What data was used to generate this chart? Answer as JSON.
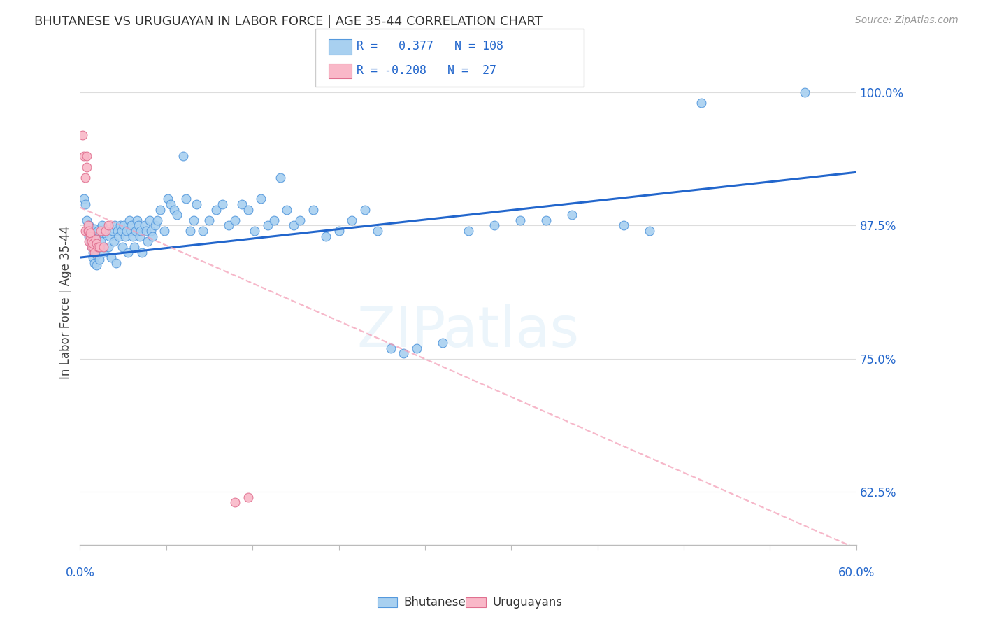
{
  "title": "BHUTANESE VS URUGUAYAN IN LABOR FORCE | AGE 35-44 CORRELATION CHART",
  "source": "Source: ZipAtlas.com",
  "ylabel": "In Labor Force | Age 35-44",
  "ylabel_right_ticks": [
    0.625,
    0.75,
    0.875,
    1.0
  ],
  "ylabel_right_labels": [
    "62.5%",
    "75.0%",
    "87.5%",
    "100.0%"
  ],
  "xmin": 0.0,
  "xmax": 0.6,
  "ymin": 0.575,
  "ymax": 1.03,
  "blue_color": "#A8D0F0",
  "pink_color": "#F9B8C8",
  "blue_edge_color": "#5599DD",
  "pink_edge_color": "#E07090",
  "blue_line_color": "#2266CC",
  "pink_line_color": "#F4A0B8",
  "label_color": "#2266CC",
  "watermark": "ZIPatlas",
  "blue_scatter_x": [
    0.003,
    0.004,
    0.005,
    0.006,
    0.007,
    0.007,
    0.008,
    0.008,
    0.009,
    0.009,
    0.01,
    0.01,
    0.01,
    0.011,
    0.011,
    0.012,
    0.012,
    0.013,
    0.013,
    0.014,
    0.015,
    0.015,
    0.016,
    0.017,
    0.018,
    0.019,
    0.02,
    0.022,
    0.023,
    0.024,
    0.025,
    0.026,
    0.027,
    0.028,
    0.029,
    0.03,
    0.031,
    0.032,
    0.033,
    0.034,
    0.035,
    0.036,
    0.037,
    0.038,
    0.039,
    0.04,
    0.041,
    0.042,
    0.043,
    0.044,
    0.045,
    0.046,
    0.047,
    0.048,
    0.05,
    0.051,
    0.052,
    0.054,
    0.055,
    0.056,
    0.058,
    0.06,
    0.062,
    0.065,
    0.068,
    0.07,
    0.073,
    0.075,
    0.08,
    0.082,
    0.085,
    0.088,
    0.09,
    0.095,
    0.1,
    0.105,
    0.11,
    0.115,
    0.12,
    0.125,
    0.13,
    0.135,
    0.14,
    0.145,
    0.15,
    0.155,
    0.16,
    0.165,
    0.17,
    0.18,
    0.19,
    0.2,
    0.21,
    0.22,
    0.23,
    0.24,
    0.25,
    0.26,
    0.28,
    0.3,
    0.32,
    0.34,
    0.36,
    0.38,
    0.42,
    0.44,
    0.48,
    0.56
  ],
  "blue_scatter_y": [
    0.9,
    0.895,
    0.88,
    0.87,
    0.865,
    0.875,
    0.86,
    0.868,
    0.855,
    0.863,
    0.85,
    0.858,
    0.845,
    0.872,
    0.84,
    0.865,
    0.855,
    0.848,
    0.838,
    0.87,
    0.843,
    0.855,
    0.86,
    0.875,
    0.85,
    0.868,
    0.87,
    0.855,
    0.865,
    0.845,
    0.87,
    0.86,
    0.875,
    0.84,
    0.87,
    0.865,
    0.875,
    0.87,
    0.855,
    0.875,
    0.865,
    0.87,
    0.85,
    0.88,
    0.87,
    0.875,
    0.865,
    0.855,
    0.87,
    0.88,
    0.875,
    0.865,
    0.87,
    0.85,
    0.875,
    0.87,
    0.86,
    0.88,
    0.87,
    0.865,
    0.875,
    0.88,
    0.89,
    0.87,
    0.9,
    0.895,
    0.89,
    0.885,
    0.94,
    0.9,
    0.87,
    0.88,
    0.895,
    0.87,
    0.88,
    0.89,
    0.895,
    0.875,
    0.88,
    0.895,
    0.89,
    0.87,
    0.9,
    0.875,
    0.88,
    0.92,
    0.89,
    0.875,
    0.88,
    0.89,
    0.865,
    0.87,
    0.88,
    0.89,
    0.87,
    0.76,
    0.755,
    0.76,
    0.765,
    0.87,
    0.875,
    0.88,
    0.88,
    0.885,
    0.875,
    0.87,
    0.99,
    1.0
  ],
  "pink_scatter_x": [
    0.002,
    0.003,
    0.004,
    0.004,
    0.005,
    0.005,
    0.006,
    0.006,
    0.007,
    0.007,
    0.008,
    0.008,
    0.009,
    0.009,
    0.01,
    0.01,
    0.011,
    0.012,
    0.013,
    0.014,
    0.015,
    0.016,
    0.018,
    0.02,
    0.022,
    0.12,
    0.13
  ],
  "pink_scatter_y": [
    0.96,
    0.94,
    0.87,
    0.92,
    0.93,
    0.94,
    0.87,
    0.875,
    0.86,
    0.87,
    0.865,
    0.868,
    0.855,
    0.86,
    0.855,
    0.858,
    0.85,
    0.862,
    0.858,
    0.855,
    0.855,
    0.87,
    0.855,
    0.87,
    0.875,
    0.615,
    0.62
  ],
  "blue_trendline_x": [
    0.0,
    0.6
  ],
  "blue_trendline_y": [
    0.845,
    0.925
  ],
  "pink_trendline_x": [
    0.0,
    0.6
  ],
  "pink_trendline_y": [
    0.892,
    0.572
  ]
}
